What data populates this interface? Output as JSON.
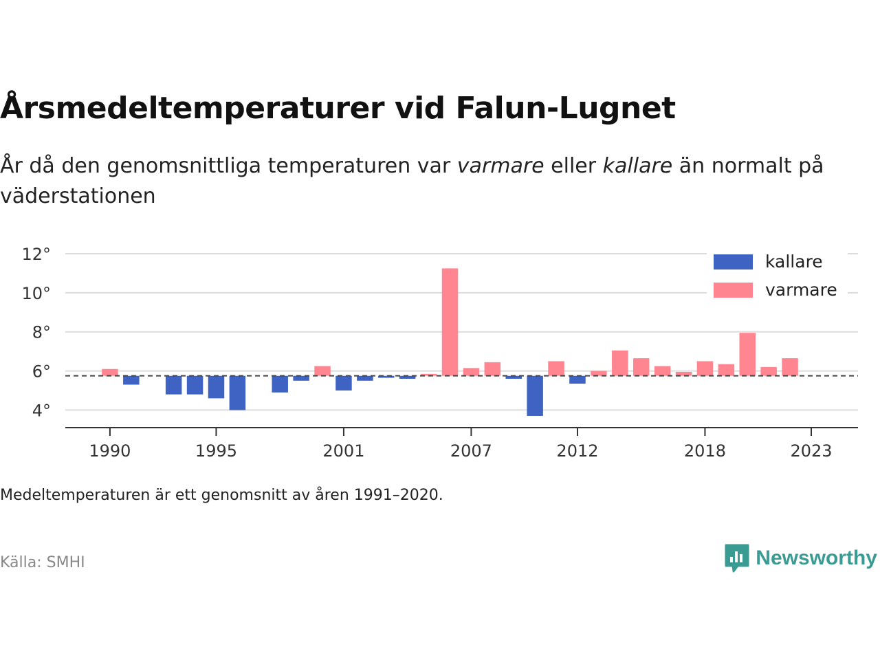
{
  "header": {
    "title": "Årsmedeltemperaturer vid Falun-Lugnet",
    "subtitle_part1": "År då den genomsnittliga temperaturen var ",
    "subtitle_warm": "varmare",
    "subtitle_part2": " eller ",
    "subtitle_cold": "kallare",
    "subtitle_part3": " än normalt på väderstationen"
  },
  "footer": {
    "note": "Medeltemperaturen är ett genomsnitt av åren 1991–2020.",
    "source": "Källa: SMHI",
    "brand": "Newsworthy"
  },
  "colors": {
    "kallare": "#3f63c2",
    "varmare": "#ff8591",
    "brand": "#3a9b93"
  },
  "chart_data": {
    "type": "bar",
    "title": "Årsmedeltemperaturer vid Falun-Lugnet",
    "baseline": 5.75,
    "ylim": [
      3.1,
      12.6
    ],
    "yticks": [
      4,
      6,
      8,
      10,
      12
    ],
    "ytick_labels": [
      "4°",
      "6°",
      "8°",
      "10°",
      "12°"
    ],
    "xlim": [
      1987.9,
      2025.2
    ],
    "xticks": [
      1990,
      1995,
      2001,
      2007,
      2012,
      2018,
      2023
    ],
    "xtick_labels": [
      "1990",
      "1995",
      "2001",
      "2007",
      "2012",
      "2018",
      "2023"
    ],
    "grid": true,
    "legend_position": "top-right",
    "legend": [
      {
        "name": "kallare",
        "color": "#3f63c2"
      },
      {
        "name": "varmare",
        "color": "#ff8591"
      }
    ],
    "x": [
      1990,
      1991,
      1993,
      1994,
      1995,
      1996,
      1998,
      1999,
      2000,
      2001,
      2002,
      2003,
      2004,
      2005,
      2006,
      2007,
      2008,
      2009,
      2010,
      2011,
      2012,
      2013,
      2014,
      2015,
      2016,
      2017,
      2018,
      2019,
      2020,
      2021,
      2022
    ],
    "values": [
      6.1,
      5.3,
      4.8,
      4.8,
      4.6,
      4.0,
      4.9,
      5.5,
      6.25,
      5.0,
      5.5,
      5.65,
      5.6,
      5.85,
      11.25,
      6.15,
      6.45,
      5.6,
      3.7,
      6.5,
      5.35,
      6.0,
      7.05,
      6.65,
      6.25,
      5.95,
      6.5,
      6.35,
      7.95,
      6.2,
      6.65
    ]
  }
}
